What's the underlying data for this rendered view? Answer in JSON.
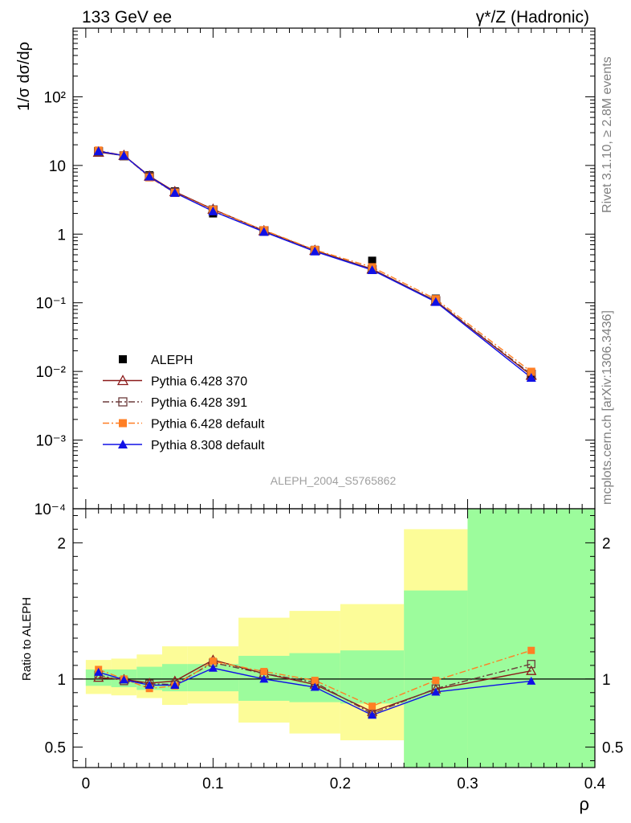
{
  "header": {
    "left_label": "133 GeV ee",
    "right_label": "γ*/Z (Hadronic)"
  },
  "side_labels": {
    "rivet": "Rivet 3.1.10, ≥ 2.8M events",
    "mcplots": "mcplots.cern.ch [arXiv:1306.3436]"
  },
  "watermark": "ALEPH_2004_S5765862",
  "chart_data": [
    {
      "type": "line",
      "panel": "main",
      "ylabel": "1/σ  dσ/dρ",
      "yscale": "log",
      "ylim": [
        0.0001,
        1000
      ],
      "xlim": [
        -0.01,
        0.4
      ],
      "y_tick_labels": [
        "10⁻⁴",
        "10⁻³",
        "10⁻²",
        "10⁻¹",
        "1",
        "10",
        "10²"
      ],
      "legend_position": "bottom-left",
      "x": [
        0.01,
        0.03,
        0.05,
        0.07,
        0.1,
        0.14,
        0.18,
        0.225,
        0.275,
        0.35
      ],
      "series": [
        {
          "name": "ALEPH",
          "color": "#000000",
          "marker": "square-filled",
          "line": "none",
          "values": [
            15.5,
            14.0,
            7.2,
            4.2,
            2.0,
            1.08,
            0.59,
            0.41,
            0.115,
            0.0082
          ]
        },
        {
          "name": "Pythia 6.428 370",
          "color": "#8b1a1a",
          "marker": "triangle-open",
          "line": "solid",
          "values": [
            15.6,
            14.0,
            7.0,
            4.15,
            2.3,
            1.12,
            0.58,
            0.31,
            0.106,
            0.0088
          ]
        },
        {
          "name": "Pythia 6.428 391",
          "color": "#6b3a3a",
          "marker": "square-open",
          "line": "dashdot",
          "values": [
            15.9,
            13.8,
            6.9,
            4.05,
            2.25,
            1.12,
            0.575,
            0.305,
            0.107,
            0.0091
          ]
        },
        {
          "name": "Pythia 6.428 default",
          "color": "#ff7f24",
          "marker": "square-filled",
          "line": "dashdot",
          "values": [
            16.5,
            14.0,
            6.7,
            4.0,
            2.26,
            1.14,
            0.59,
            0.33,
            0.113,
            0.0099
          ]
        },
        {
          "name": "Pythia 8.308 default",
          "color": "#1010e6",
          "marker": "triangle-filled",
          "line": "solid",
          "values": [
            16.2,
            13.9,
            6.9,
            4.0,
            2.15,
            1.08,
            0.56,
            0.3,
            0.103,
            0.0081
          ]
        }
      ]
    },
    {
      "type": "line",
      "panel": "ratio",
      "ylabel": "Ratio to ALEPH",
      "xlabel": "ρ",
      "ylim": [
        0.35,
        2.25
      ],
      "xlim": [
        -0.01,
        0.4
      ],
      "x_tick_labels": [
        "0",
        "0.1",
        "0.2",
        "0.3",
        "0.4"
      ],
      "y_tick_labels": [
        "0.5",
        "1",
        "2"
      ],
      "reference_line": 1,
      "bins": [
        [
          0,
          0.02
        ],
        [
          0.02,
          0.04
        ],
        [
          0.04,
          0.06
        ],
        [
          0.06,
          0.08
        ],
        [
          0.08,
          0.12
        ],
        [
          0.12,
          0.16
        ],
        [
          0.16,
          0.2
        ],
        [
          0.2,
          0.25
        ],
        [
          0.25,
          0.3
        ],
        [
          0.3,
          0.4
        ]
      ],
      "band_inner": [
        [
          0.95,
          1.07
        ],
        [
          0.94,
          1.07
        ],
        [
          0.92,
          1.09
        ],
        [
          0.91,
          1.11
        ],
        [
          0.91,
          1.11
        ],
        [
          0.84,
          1.17
        ],
        [
          0.83,
          1.19
        ],
        [
          0.82,
          1.21
        ],
        [
          0.35,
          1.65
        ],
        [
          0.35,
          2.25
        ]
      ],
      "band_outer": [
        [
          0.89,
          1.14
        ],
        [
          0.88,
          1.15
        ],
        [
          0.86,
          1.18
        ],
        [
          0.81,
          1.24
        ],
        [
          0.82,
          1.24
        ],
        [
          0.68,
          1.45
        ],
        [
          0.6,
          1.5
        ],
        [
          0.55,
          1.55
        ],
        [
          0.35,
          2.1
        ],
        [
          0.35,
          2.25
        ]
      ],
      "band_inner_color": "#9cfc9c",
      "band_outer_color": "#fcfc98",
      "x": [
        0.01,
        0.03,
        0.05,
        0.07,
        0.1,
        0.14,
        0.18,
        0.225,
        0.275,
        0.35
      ],
      "series": [
        {
          "name": "Pythia 6.428 370",
          "color": "#8b1a1a",
          "marker": "triangle-open",
          "line": "solid",
          "values": [
            1.01,
            0.998,
            0.97,
            0.985,
            1.14,
            1.04,
            0.96,
            0.76,
            0.925,
            1.06
          ]
        },
        {
          "name": "Pythia 6.428 391",
          "color": "#6b3a3a",
          "marker": "square-open",
          "line": "dashdot",
          "values": [
            1.03,
            0.985,
            0.965,
            0.96,
            1.12,
            1.04,
            0.975,
            0.745,
            0.93,
            1.11
          ]
        },
        {
          "name": "Pythia 6.428 default",
          "color": "#ff7f24",
          "marker": "square-filled",
          "line": "dashdot",
          "values": [
            1.07,
            1.0,
            0.93,
            0.95,
            1.13,
            1.055,
            0.99,
            0.8,
            0.99,
            1.21
          ]
        },
        {
          "name": "Pythia 8.308 default",
          "color": "#1010e6",
          "marker": "triangle-filled",
          "line": "solid",
          "values": [
            1.05,
            0.995,
            0.955,
            0.955,
            1.08,
            1.0,
            0.94,
            0.735,
            0.905,
            0.985
          ]
        }
      ]
    }
  ]
}
